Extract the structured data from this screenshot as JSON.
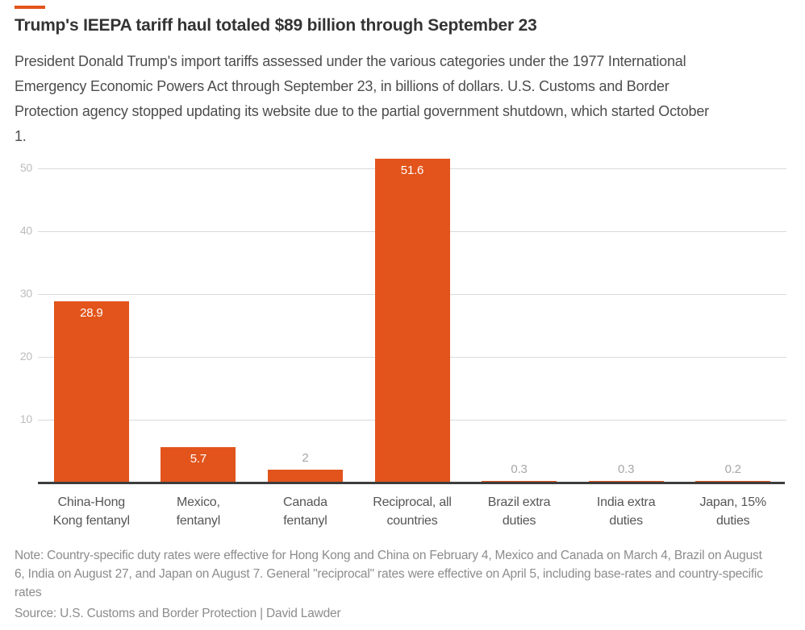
{
  "header": {
    "accent_color": "#e2541b",
    "title": "Trump's IEEPA tariff haul totaled $89 billion through September 23",
    "subtitle": "President Donald Trump's import tariffs assessed under the various categories under the 1977 International Emergency Economic Powers Act through September 23, in billions of dollars. U.S. Customs and Border Protection agency stopped updating its website due to the partial government shutdown, which started October 1."
  },
  "chart_data": {
    "type": "bar",
    "title": "Trump's IEEPA tariff haul totaled $89 billion through September 23",
    "categories": [
      "China-Hong\nKong fentanyl",
      "Mexico,\nfentanyl",
      "Canada\nfentanyl",
      "Reciprocal, all\ncountries",
      "Brazil extra\nduties",
      "India extra\nduties",
      "Japan, 15%\nduties"
    ],
    "values": [
      28.9,
      5.7,
      2,
      51.6,
      0.3,
      0.3,
      0.2
    ],
    "value_labels": [
      "28.9",
      "5.7",
      "2",
      "51.6",
      "0.3",
      "0.3",
      "0.2"
    ],
    "xlabel": "",
    "ylabel": "",
    "unit": "billions of dollars",
    "ylim": [
      0,
      52
    ],
    "yticks": [
      10,
      20,
      30,
      40,
      50
    ],
    "grid": true,
    "legend": false,
    "bar_color": "#e2541b",
    "gridline_color": "#dadada",
    "axis_line_color": "#3d3d3d",
    "tick_label_color": "#bcbcbc",
    "value_label_inside_color": "#ffffff",
    "value_label_outside_color": "#a6a6a6",
    "category_label_color": "#565656"
  },
  "footer": {
    "note": "Note: Country-specific duty rates were effective for Hong Kong and China on February 4, Mexico and Canada on March 4, Brazil on August 6, India on August 27, and Japan on August 7. General \"reciprocal\" rates were effective on April 5, including base-rates and country-specific rates",
    "source": "Source: U.S. Customs and Border Protection | David Lawder"
  }
}
